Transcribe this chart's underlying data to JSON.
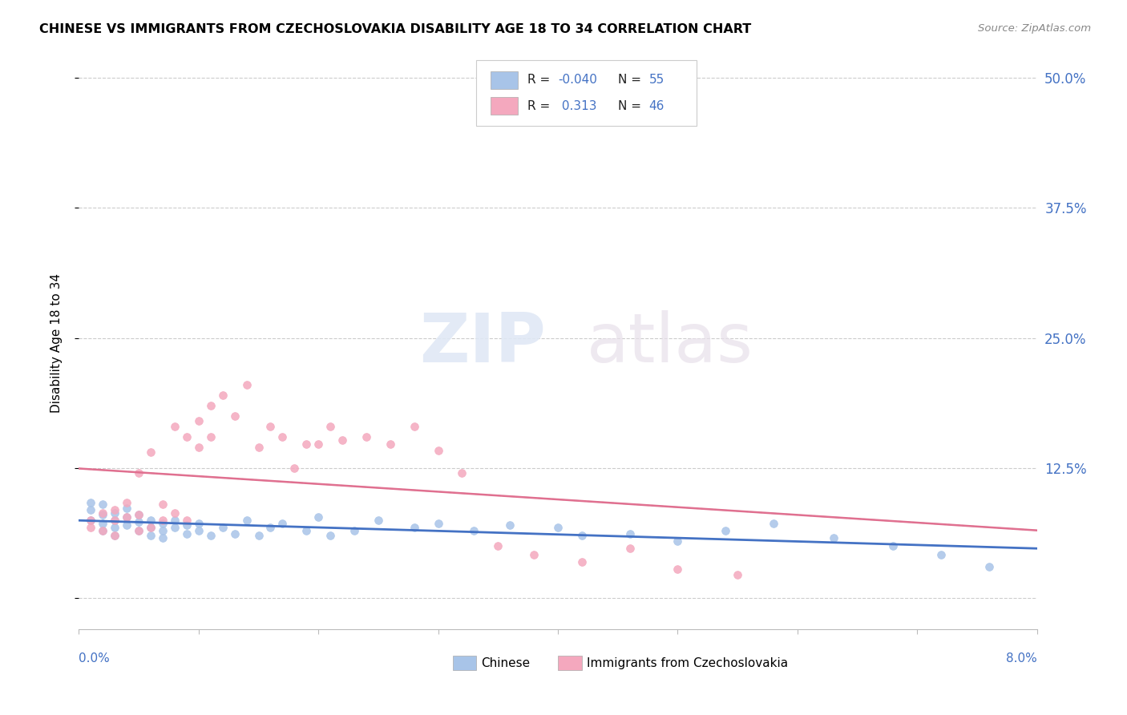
{
  "title": "CHINESE VS IMMIGRANTS FROM CZECHOSLOVAKIA DISABILITY AGE 18 TO 34 CORRELATION CHART",
  "source": "Source: ZipAtlas.com",
  "ylabel": "Disability Age 18 to 34",
  "ytick_labels": [
    "",
    "12.5%",
    "25.0%",
    "37.5%",
    "50.0%"
  ],
  "ytick_values": [
    0.0,
    0.125,
    0.25,
    0.375,
    0.5
  ],
  "xmin": 0.0,
  "xmax": 0.08,
  "ymin": -0.03,
  "ymax": 0.52,
  "legend_r1": "-0.040",
  "legend_n1": "55",
  "legend_r2": "0.313",
  "legend_n2": "46",
  "color_blue": "#A8C4E8",
  "color_pink": "#F4A8BE",
  "color_blue_dark": "#4472C4",
  "color_pink_dark": "#E07090",
  "color_axis_text": "#4472C4",
  "color_grid": "#CCCCCC",
  "background": "#FFFFFF",
  "chinese_x": [
    0.001,
    0.001,
    0.001,
    0.002,
    0.002,
    0.002,
    0.002,
    0.003,
    0.003,
    0.003,
    0.003,
    0.004,
    0.004,
    0.004,
    0.005,
    0.005,
    0.005,
    0.006,
    0.006,
    0.006,
    0.007,
    0.007,
    0.007,
    0.008,
    0.008,
    0.009,
    0.009,
    0.01,
    0.01,
    0.011,
    0.012,
    0.013,
    0.014,
    0.015,
    0.016,
    0.017,
    0.019,
    0.02,
    0.021,
    0.023,
    0.025,
    0.028,
    0.03,
    0.033,
    0.036,
    0.04,
    0.042,
    0.046,
    0.05,
    0.054,
    0.058,
    0.063,
    0.068,
    0.072,
    0.076
  ],
  "chinese_y": [
    0.075,
    0.085,
    0.092,
    0.065,
    0.072,
    0.08,
    0.09,
    0.068,
    0.075,
    0.082,
    0.06,
    0.07,
    0.078,
    0.086,
    0.065,
    0.073,
    0.08,
    0.06,
    0.068,
    0.075,
    0.065,
    0.072,
    0.058,
    0.068,
    0.075,
    0.062,
    0.07,
    0.065,
    0.072,
    0.06,
    0.068,
    0.062,
    0.075,
    0.06,
    0.068,
    0.072,
    0.065,
    0.078,
    0.06,
    0.065,
    0.075,
    0.068,
    0.072,
    0.065,
    0.07,
    0.068,
    0.06,
    0.062,
    0.055,
    0.065,
    0.072,
    0.058,
    0.05,
    0.042,
    0.03
  ],
  "czech_x": [
    0.001,
    0.001,
    0.002,
    0.002,
    0.003,
    0.003,
    0.003,
    0.004,
    0.004,
    0.005,
    0.005,
    0.005,
    0.006,
    0.006,
    0.007,
    0.007,
    0.008,
    0.008,
    0.009,
    0.009,
    0.01,
    0.01,
    0.011,
    0.011,
    0.012,
    0.013,
    0.014,
    0.015,
    0.016,
    0.017,
    0.018,
    0.019,
    0.02,
    0.021,
    0.022,
    0.024,
    0.026,
    0.028,
    0.03,
    0.032,
    0.035,
    0.038,
    0.042,
    0.046,
    0.05,
    0.055
  ],
  "czech_y": [
    0.075,
    0.068,
    0.082,
    0.065,
    0.075,
    0.06,
    0.085,
    0.078,
    0.092,
    0.065,
    0.12,
    0.08,
    0.068,
    0.14,
    0.075,
    0.09,
    0.165,
    0.082,
    0.075,
    0.155,
    0.145,
    0.17,
    0.155,
    0.185,
    0.195,
    0.175,
    0.205,
    0.145,
    0.165,
    0.155,
    0.125,
    0.148,
    0.148,
    0.165,
    0.152,
    0.155,
    0.148,
    0.165,
    0.142,
    0.12,
    0.05,
    0.042,
    0.035,
    0.048,
    0.028,
    0.022
  ]
}
